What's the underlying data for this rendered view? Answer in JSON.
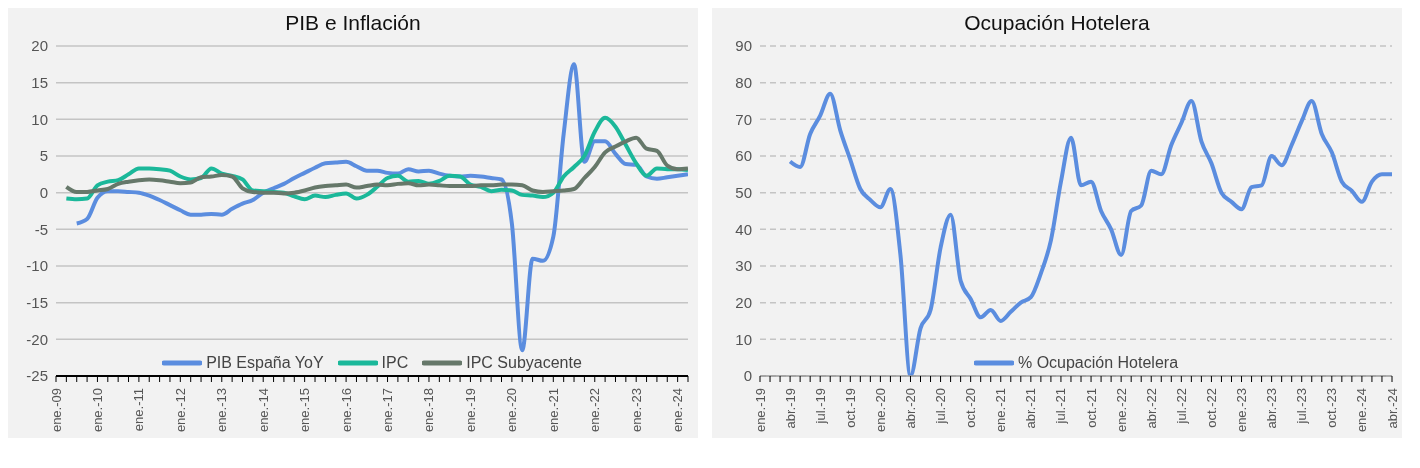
{
  "chart_data": [
    {
      "type": "line",
      "title": "PIB e Inflación",
      "categories": [
        "ene.-09",
        null,
        null,
        null,
        "ene.-10",
        null,
        null,
        null,
        "ene.-11",
        null,
        null,
        null,
        "ene.-12",
        null,
        null,
        null,
        "ene.-13",
        null,
        null,
        null,
        "ene.-14",
        null,
        null,
        null,
        "ene.-15",
        null,
        null,
        null,
        "ene.-16",
        null,
        null,
        null,
        "ene.-17",
        null,
        null,
        null,
        "ene.-18",
        null,
        null,
        null,
        "ene.-19",
        null,
        null,
        null,
        "ene.-20",
        null,
        null,
        null,
        "ene.-21",
        null,
        null,
        null,
        "ene.-22",
        null,
        null,
        null,
        "ene.-23",
        null,
        null,
        null,
        "ene.-24",
        null
      ],
      "series": [
        {
          "name": "PIB España YoY",
          "color": "#5b8ddf",
          "values": [
            null,
            null,
            -4.2,
            -3.6,
            -0.7,
            0.2,
            0.2,
            0.1,
            0,
            -0.4,
            -1.0,
            -1.7,
            -2.4,
            -3.0,
            -3.0,
            -2.9,
            -3.0,
            -2.2,
            -1.5,
            -1.0,
            0.0,
            0.6,
            1.2,
            2.0,
            2.7,
            3.4,
            4.0,
            4.1,
            4.2,
            3.6,
            3.0,
            3.0,
            2.7,
            2.6,
            3.2,
            2.9,
            3.0,
            2.6,
            2.3,
            2.2,
            2.3,
            2.2,
            2.0,
            1.8,
            -4.2,
            -21.5,
            -9.0,
            -9.3,
            -6.0,
            8.0,
            17.5,
            4.2,
            7.0,
            7.0,
            5.3,
            3.9,
            3.8,
            2.2,
            1.9,
            2.1,
            2.3,
            2.5
          ]
        },
        {
          "name": "IPC",
          "color": "#1bb89a",
          "values": [
            null,
            -0.8,
            -0.9,
            -0.8,
            1.0,
            1.5,
            1.7,
            2.5,
            3.3,
            3.3,
            3.2,
            3.0,
            2.2,
            1.8,
            2.0,
            3.3,
            2.6,
            2.3,
            1.8,
            0.3,
            0.2,
            0.1,
            0.0,
            -0.5,
            -0.9,
            -0.4,
            -0.6,
            -0.3,
            -0.1,
            -0.8,
            -0.3,
            0.8,
            2.0,
            2.3,
            1.5,
            1.6,
            1.2,
            1.6,
            2.3,
            2.2,
            1.1,
            0.8,
            0.2,
            0.4,
            0.3,
            -0.3,
            -0.4,
            -0.6,
            0.0,
            2.2,
            3.5,
            5.0,
            8.3,
            10.2,
            9.0,
            6.5,
            4.0,
            2.3,
            3.3,
            3.2,
            3.2,
            3.1
          ]
        },
        {
          "name": "IPC Subyacente",
          "color": "#66786a",
          "values": [
            null,
            0.8,
            0.1,
            0.1,
            0.3,
            0.5,
            1.2,
            1.5,
            1.7,
            1.8,
            1.7,
            1.5,
            1.3,
            1.4,
            2.1,
            2.2,
            2.4,
            2.2,
            0.6,
            0.1,
            0.0,
            0.0,
            -0.1,
            0.0,
            0.3,
            0.7,
            0.9,
            1.0,
            1.1,
            0.7,
            0.9,
            1.1,
            1.0,
            1.2,
            1.3,
            1.0,
            1.1,
            1.0,
            0.9,
            0.9,
            0.9,
            1.0,
            1.0,
            1.1,
            1.1,
            1.0,
            0.3,
            0.1,
            0.2,
            0.3,
            0.5,
            2.0,
            3.5,
            5.5,
            6.3,
            7.0,
            7.5,
            6.0,
            5.7,
            3.7,
            3.2,
            3.3
          ]
        }
      ],
      "ylim": [
        -25,
        20
      ],
      "yticks": [
        -25,
        -20,
        -15,
        -10,
        -5,
        0,
        5,
        10,
        15,
        20
      ],
      "grid": "y",
      "legend": "bottom"
    },
    {
      "type": "line",
      "title": "Ocupación Hotelera",
      "categories": [
        "ene.-19",
        null,
        null,
        "abr.-19",
        null,
        null,
        "jul.-19",
        null,
        null,
        "oct.-19",
        null,
        null,
        "ene.-20",
        null,
        null,
        "abr.-20",
        null,
        null,
        "jul.-20",
        null,
        null,
        "oct.-20",
        null,
        null,
        "ene.-21",
        null,
        null,
        "abr.-21",
        null,
        null,
        "jul.-21",
        null,
        null,
        "oct.-21",
        null,
        null,
        "ene.-22",
        null,
        null,
        "abr.-22",
        null,
        null,
        "jul.-22",
        null,
        null,
        "oct.-22",
        null,
        null,
        "ene.-23",
        null,
        null,
        "abr.-23",
        null,
        null,
        "jul.-23",
        null,
        null,
        "oct.-23",
        null,
        null,
        "ene.-24",
        null,
        null,
        "abr.-24"
      ],
      "series": [
        {
          "name": "% Ocupación Hotelera",
          "color": "#5b8ddf",
          "values": [
            null,
            null,
            null,
            58.5,
            57,
            66,
            71,
            77,
            67,
            59,
            51,
            48,
            46,
            51,
            33,
            0,
            13,
            18,
            35,
            44,
            26,
            21,
            16,
            18,
            15,
            17.5,
            20,
            21.5,
            28,
            37,
            53,
            65,
            52,
            53,
            45,
            40,
            33,
            45,
            46.5,
            56,
            55,
            63,
            69,
            75,
            64,
            58,
            50,
            47.5,
            45.5,
            51.5,
            52,
            60,
            57.5,
            63,
            69.5,
            75,
            66,
            61,
            53,
            50.5,
            47.5,
            53,
            55,
            55
          ]
        }
      ],
      "ylim": [
        0,
        90
      ],
      "yticks": [
        0,
        10,
        20,
        30,
        40,
        50,
        60,
        70,
        80,
        90
      ],
      "grid": "y",
      "legend": "bottom"
    }
  ]
}
